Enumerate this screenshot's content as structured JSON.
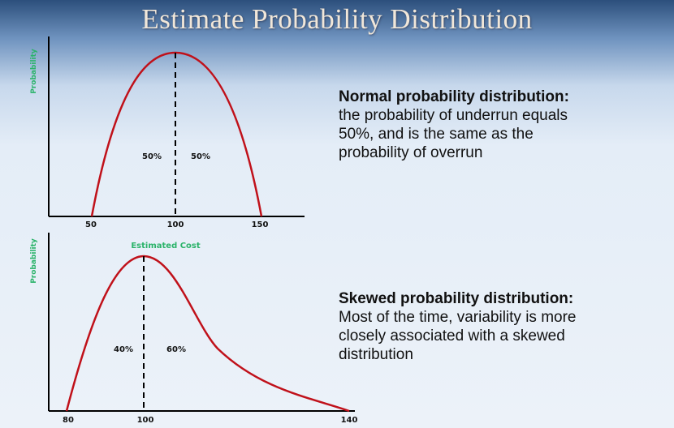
{
  "title": "Estimate Probability Distribution",
  "top_chart": {
    "y_axis_label": "Probability",
    "x_ticks": [
      "50",
      "100",
      "150"
    ],
    "left_pct": "50%",
    "right_pct": "50%",
    "description_heading": "Normal probability distribution:",
    "description_body": "the probability of underrun equals 50%, and is the same as the probability of overrun"
  },
  "bottom_chart": {
    "y_axis_label": "Probability",
    "annotation": "Estimated Cost",
    "x_ticks": [
      "80",
      "100",
      "140"
    ],
    "left_pct": "40%",
    "right_pct": "60%",
    "description_heading": "Skewed probability distribution:",
    "description_body": "Most of the time, variability is more closely associated with a skewed distribution"
  },
  "colors": {
    "curve": "#c0111a",
    "label_green": "#2bb36a",
    "title": "#f1e7d9"
  }
}
